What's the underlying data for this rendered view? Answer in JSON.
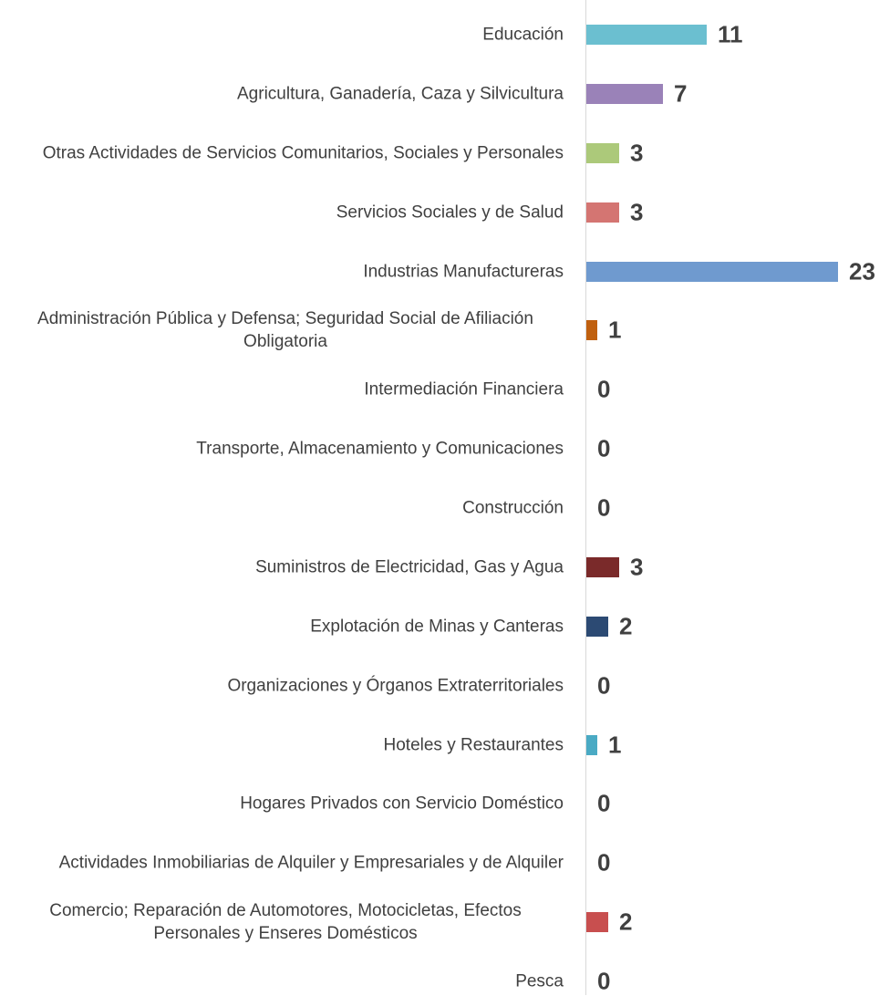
{
  "chart_data": {
    "type": "bar",
    "orientation": "horizontal",
    "categories": [
      "Educación",
      "Agricultura, Ganadería, Caza y Silvicultura",
      "Otras Actividades de Servicios Comunitarios, Sociales y Personales",
      "Servicios Sociales y de Salud",
      "Industrias Manufactureras",
      "Administración Pública y Defensa; Seguridad Social de Afiliación Obligatoria",
      "Intermediación Financiera",
      "Transporte, Almacenamiento y Comunicaciones",
      "Construcción",
      "Suministros de Electricidad, Gas y Agua",
      "Explotación de Minas y Canteras",
      "Organizaciones y Órganos Extraterritoriales",
      "Hoteles y Restaurantes",
      "Hogares Privados con Servicio Doméstico",
      "Actividades Inmobiliarias de Alquiler y Empresariales y de Alquiler",
      "Comercio; Reparación de Automotores, Motocicletas, Efectos Personales y Enseres Domésticos",
      "Pesca"
    ],
    "values": [
      11,
      7,
      3,
      3,
      23,
      1,
      0,
      0,
      0,
      3,
      2,
      0,
      1,
      0,
      0,
      2,
      0
    ],
    "colors": [
      "#6bbfd0",
      "#9a82b8",
      "#acc97a",
      "#d47572",
      "#6f9acf",
      "#c0600f",
      null,
      null,
      null,
      "#7a2a2a",
      "#2c4a73",
      null,
      "#4aaac4",
      null,
      null,
      "#c84f4f",
      null
    ],
    "xlim": [
      0,
      23
    ]
  }
}
